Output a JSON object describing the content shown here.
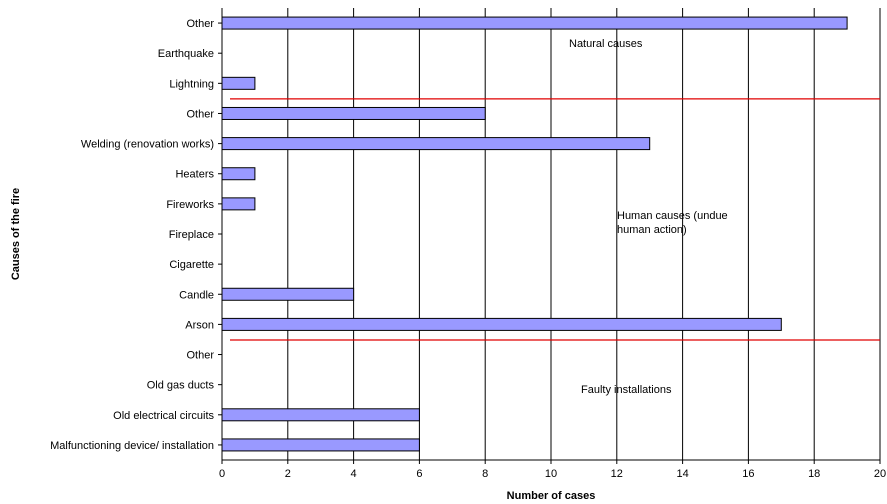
{
  "chart_data": {
    "type": "bar",
    "orientation": "horizontal",
    "xlabel": "Number of cases",
    "ylabel": "Causes of the fire",
    "xlim": [
      0,
      20
    ],
    "xticks": [
      "0",
      "2",
      "4",
      "6",
      "8",
      "10",
      "12",
      "14",
      "16",
      "18",
      "20"
    ],
    "grid": "vertical",
    "bar_color": "#9999ff",
    "bar_edge_color": "#000000",
    "separator_color": "#e00000",
    "categories": [
      "Other",
      "Earthquake",
      "Lightning",
      "Other",
      "Welding (renovation works)",
      "Heaters",
      "Fireworks",
      "Fireplace",
      "Cigarette",
      "Candle",
      "Arson",
      "Other",
      "Old gas ducts",
      "Old electrical circuits",
      "Malfunctioning device/ installation"
    ],
    "values": [
      19,
      0,
      1,
      8,
      13,
      1,
      1,
      0,
      0,
      4,
      17,
      0,
      0,
      6,
      6
    ],
    "groups": [
      {
        "label_lines": [
          "Natural causes"
        ],
        "separator_after_index": 2
      },
      {
        "label_lines": [
          "Human causes (undue",
          "human action)"
        ],
        "separator_after_index": 10
      },
      {
        "label_lines": [
          "Faulty installations"
        ]
      }
    ]
  }
}
